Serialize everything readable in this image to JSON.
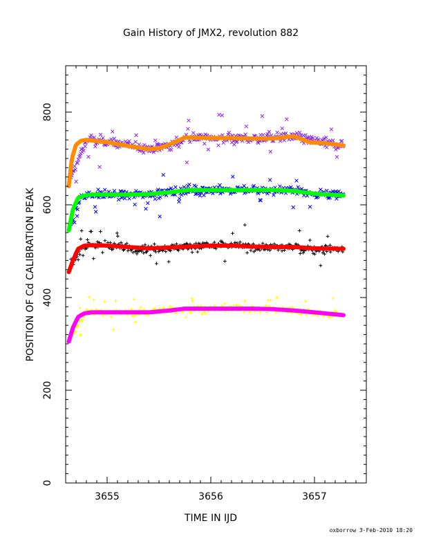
{
  "chart_data": {
    "type": "scatter",
    "title": "Gain History of JMX2, revolution 882",
    "xlabel": "TIME IN IJD",
    "ylabel": "POSITION OF Cd CALIBRATION PEAK",
    "xlim": [
      3654.6,
      3657.5
    ],
    "ylim": [
      0,
      900
    ],
    "xticks": [
      3655,
      3656,
      3657
    ],
    "xtick_labels": [
      "3655",
      "3656",
      "3657"
    ],
    "yticks": [
      0,
      200,
      400,
      600,
      800
    ],
    "ytick_labels": [
      "0",
      "200",
      "400",
      "600",
      "800"
    ],
    "footer": "oxborrow  3-Feb-2010 18:20",
    "grid": false,
    "series": [
      {
        "marker": "x",
        "color": "#8a2be2",
        "role": "measured",
        "x": [
          3654.65,
          3654.8,
          3655.0,
          3655.2,
          3655.4,
          3655.6,
          3655.8,
          3656.0,
          3656.2,
          3656.4,
          3656.6,
          3656.8,
          3657.0,
          3657.28
        ],
        "y": [
          655,
          738,
          736,
          728,
          722,
          728,
          745,
          744,
          744,
          743,
          745,
          747,
          737,
          728
        ],
        "noise": 14
      },
      {
        "marker": "line",
        "color": "#ff8c00",
        "role": "fit",
        "x": [
          3654.63,
          3654.66,
          3654.7,
          3654.75,
          3654.8,
          3655.0,
          3655.2,
          3655.4,
          3655.5,
          3655.6,
          3655.75,
          3656.0,
          3656.2,
          3656.4,
          3656.6,
          3656.8,
          3656.95,
          3657.1,
          3657.28
        ],
        "y": [
          640,
          700,
          730,
          738,
          740,
          735,
          727,
          720,
          722,
          730,
          745,
          744,
          744,
          743,
          743,
          748,
          735,
          733,
          728
        ]
      },
      {
        "marker": "x",
        "color": "#0000ff",
        "role": "measured",
        "x": [
          3654.65,
          3654.75,
          3655.0,
          3655.2,
          3655.4,
          3655.6,
          3655.8,
          3656.0,
          3656.2,
          3656.4,
          3656.6,
          3656.8,
          3657.0,
          3657.28
        ],
        "y": [
          560,
          620,
          622,
          622,
          623,
          628,
          632,
          632,
          632,
          632,
          632,
          630,
          625,
          620
        ],
        "noise": 12
      },
      {
        "marker": "line",
        "color": "#00ff00",
        "role": "fit",
        "x": [
          3654.63,
          3654.67,
          3654.72,
          3654.78,
          3654.85,
          3655.0,
          3655.2,
          3655.4,
          3655.6,
          3655.8,
          3656.0,
          3656.2,
          3656.4,
          3656.6,
          3656.8,
          3657.0,
          3657.28
        ],
        "y": [
          545,
          590,
          615,
          620,
          622,
          622,
          622,
          623,
          627,
          632,
          632,
          632,
          632,
          632,
          630,
          624,
          620
        ]
      },
      {
        "marker": "+",
        "color": "#000000",
        "role": "measured",
        "x": [
          3654.65,
          3654.8,
          3655.0,
          3655.2,
          3655.4,
          3655.6,
          3655.8,
          3656.0,
          3656.2,
          3656.4,
          3656.6,
          3656.8,
          3657.0,
          3657.28
        ],
        "y": [
          470,
          515,
          512,
          508,
          505,
          508,
          510,
          512,
          512,
          510,
          508,
          508,
          505,
          505
        ],
        "noise": 12
      },
      {
        "marker": "line",
        "color": "#ff0000",
        "role": "fit",
        "x": [
          3654.63,
          3654.67,
          3654.72,
          3654.78,
          3654.85,
          3655.0,
          3655.2,
          3655.4,
          3655.6,
          3655.8,
          3656.0,
          3656.2,
          3656.4,
          3656.6,
          3656.8,
          3657.0,
          3657.28
        ],
        "y": [
          455,
          480,
          505,
          512,
          513,
          512,
          509,
          506,
          508,
          510,
          512,
          512,
          510,
          509,
          509,
          506,
          505
        ]
      },
      {
        "marker": "+",
        "color": "#ffff00",
        "role": "measured",
        "x": [
          3654.65,
          3654.8,
          3655.0,
          3655.2,
          3655.4,
          3655.6,
          3655.8,
          3656.0,
          3656.2,
          3656.4,
          3656.6,
          3656.8,
          3657.0,
          3657.28
        ],
        "y": [
          315,
          370,
          368,
          368,
          369,
          373,
          376,
          376,
          377,
          376,
          375,
          372,
          368,
          362
        ],
        "noise": 9
      },
      {
        "marker": "line",
        "color": "#ff00ff",
        "role": "fit",
        "x": [
          3654.63,
          3654.67,
          3654.72,
          3654.78,
          3654.85,
          3655.0,
          3655.2,
          3655.4,
          3655.5,
          3655.6,
          3655.75,
          3656.0,
          3656.2,
          3656.4,
          3656.6,
          3656.8,
          3657.0,
          3657.28
        ],
        "y": [
          305,
          335,
          358,
          366,
          368,
          368,
          368,
          368,
          370,
          372,
          376,
          376,
          376,
          376,
          375,
          372,
          368,
          362
        ]
      }
    ]
  }
}
